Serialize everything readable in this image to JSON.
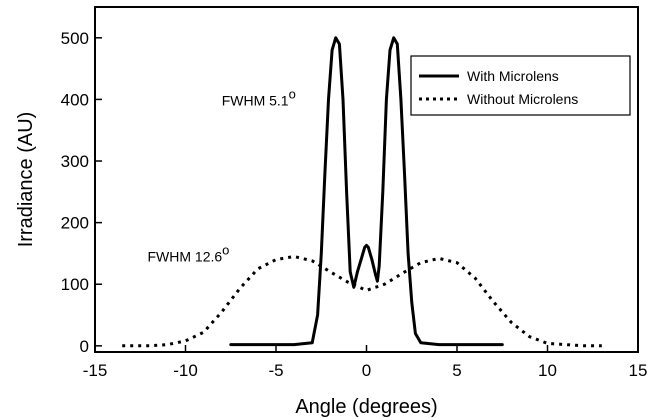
{
  "chart_data": {
    "type": "line",
    "title": "",
    "xlabel": "Angle (degrees)",
    "ylabel": "Irradiance (AU)",
    "xlim": [
      -15,
      15
    ],
    "ylim": [
      -10,
      550
    ],
    "xticks": [
      -15,
      -10,
      -5,
      0,
      5,
      10,
      15
    ],
    "xtick_labels": [
      "-15",
      "-10",
      "-5",
      "0",
      "5",
      "10",
      "15"
    ],
    "yticks": [
      0,
      100,
      200,
      300,
      400,
      500
    ],
    "ytick_labels": [
      "0",
      "100",
      "200",
      "300",
      "400",
      "500"
    ],
    "grid": false,
    "legend_position": "top-right",
    "annotations": [
      {
        "text": "FWHM 5.1",
        "degree_mark": "o",
        "x": -8,
        "y": 390
      },
      {
        "text": "FWHM 12.6",
        "degree_mark": "o",
        "x": -12.1,
        "y": 137
      }
    ],
    "series": [
      {
        "name": "With Microlens",
        "style": "solid",
        "color": "#000000",
        "x": [
          -7.5,
          -4.0,
          -3.0,
          -2.7,
          -2.5,
          -2.3,
          -2.1,
          -1.9,
          -1.7,
          -1.5,
          -1.3,
          -1.1,
          -0.9,
          -0.7,
          -0.5,
          -0.3,
          -0.1,
          0.0,
          0.1,
          0.3,
          0.5,
          0.6,
          0.7,
          0.9,
          1.1,
          1.3,
          1.5,
          1.7,
          1.9,
          2.1,
          2.3,
          2.5,
          2.7,
          3.0,
          4.0,
          7.5
        ],
        "y": [
          2,
          2,
          5,
          50,
          150,
          280,
          400,
          480,
          500,
          490,
          400,
          250,
          120,
          95,
          120,
          140,
          160,
          163,
          160,
          140,
          115,
          105,
          130,
          250,
          400,
          480,
          500,
          490,
          400,
          280,
          150,
          70,
          20,
          5,
          2,
          2
        ]
      },
      {
        "name": "Without Microlens",
        "style": "dotted",
        "color": "#000000",
        "x": [
          -13.5,
          -12,
          -11,
          -10,
          -9,
          -8,
          -7,
          -6,
          -5,
          -4,
          -3,
          -2,
          -1,
          0,
          1,
          2,
          3,
          4,
          5,
          6,
          7,
          8,
          9,
          10,
          11,
          12,
          13
        ],
        "y": [
          0,
          0,
          2,
          8,
          22,
          55,
          93,
          125,
          140,
          145,
          138,
          120,
          103,
          90,
          100,
          118,
          135,
          142,
          135,
          110,
          72,
          38,
          15,
          4,
          2,
          0,
          0
        ]
      }
    ]
  }
}
